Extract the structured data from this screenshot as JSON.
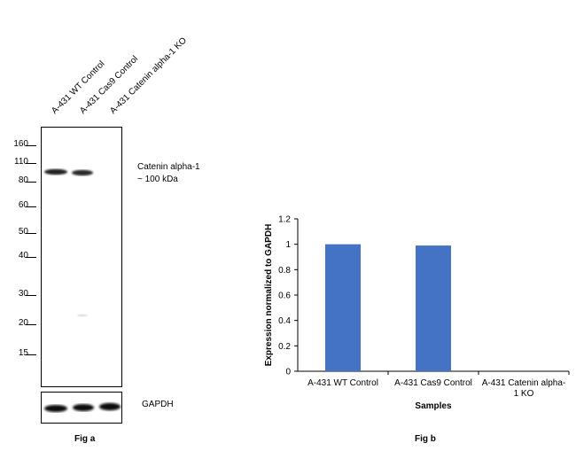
{
  "fig_a": {
    "lanes": [
      "A-431 WT Control",
      "A-431 Cas9 Control",
      "A-431 Catenin alpha-1 KO"
    ],
    "mw_markers": [
      {
        "label": "160",
        "kda": 160
      },
      {
        "label": "110",
        "kda": 110
      },
      {
        "label": "80",
        "kda": 80
      },
      {
        "label": "60",
        "kda": 60
      },
      {
        "label": "50",
        "kda": 50
      },
      {
        "label": "40",
        "kda": 40
      },
      {
        "label": "30",
        "kda": 30
      },
      {
        "label": "20",
        "kda": 20
      },
      {
        "label": "15",
        "kda": 15
      }
    ],
    "band_label_line1": "Catenin alpha-1",
    "band_label_line2": "~ 100 kDa",
    "loading_label": "GAPDH",
    "caption": "Fig a"
  },
  "fig_b": {
    "caption": "Fig b"
  },
  "chart_data": {
    "type": "bar",
    "categories": [
      "A-431 WT Control",
      "A-431 Cas9 Control",
      "A-431 Catenin alpha-1 KO"
    ],
    "category_display_lines": [
      [
        "A-431 WT Control"
      ],
      [
        "A-431 Cas9 Control"
      ],
      [
        "A-431 Catenin alpha-",
        "1 KO"
      ]
    ],
    "values": [
      1.0,
      0.99,
      0.0
    ],
    "xlabel": "Samples",
    "ylabel": "Expression normalized to GAPDH",
    "ylim": [
      0,
      1.2
    ],
    "yticks": [
      "0",
      "0.2",
      "0.4",
      "0.6",
      "0.8",
      "1",
      "1.2"
    ],
    "grid": false,
    "bar_color": "#4472C4"
  }
}
